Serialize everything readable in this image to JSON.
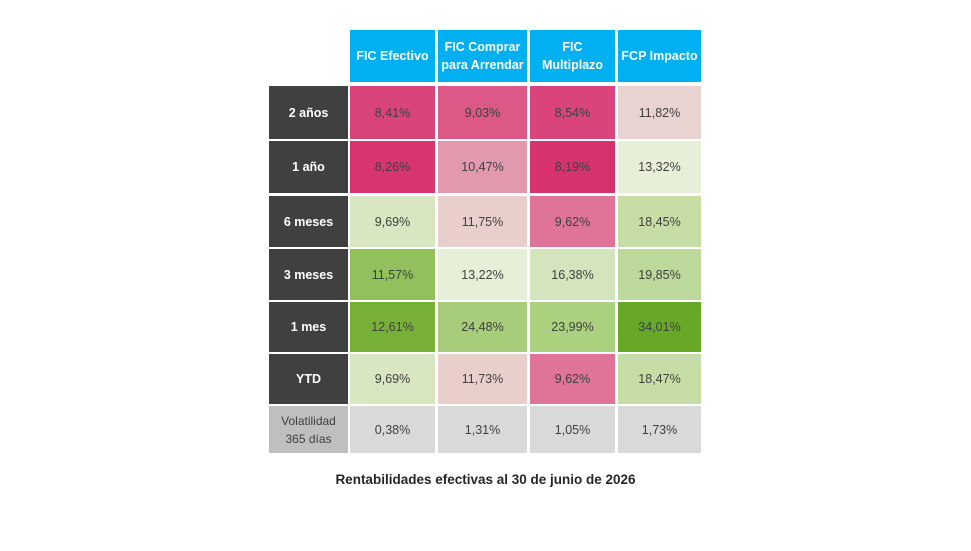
{
  "table": {
    "columns": [
      "FIC Efectivo",
      "FIC Comprar\npara Arrendar",
      "FIC\nMultiplazo",
      "FCP Impacto"
    ],
    "rows": [
      {
        "label": "2 años",
        "values": [
          "8,41%",
          "9,03%",
          "8,54%",
          "11,82%"
        ],
        "colors": [
          "#d8437a",
          "#dc5987",
          "#d8447b",
          "#e9d3d1"
        ]
      },
      {
        "label": "1 año",
        "values": [
          "8,26%",
          "10,47%",
          "8,19%",
          "13,32%"
        ],
        "colors": [
          "#d73570",
          "#e298ad",
          "#d6336e",
          "#e7efd8"
        ]
      },
      {
        "label": "6 meses",
        "values": [
          "9,69%",
          "11,75%",
          "9,62%",
          "18,45%"
        ],
        "colors": [
          "#d8e6c1",
          "#e8cfcc",
          "#df7498",
          "#c6dea6"
        ]
      },
      {
        "label": "3 meses",
        "values": [
          "11,57%",
          "13,22%",
          "16,38%",
          "19,85%"
        ],
        "colors": [
          "#92c05c",
          "#e6efd8",
          "#d4e5bd",
          "#bcd99b"
        ]
      },
      {
        "label": "1 mes",
        "values": [
          "12,61%",
          "24,48%",
          "23,99%",
          "34,01%"
        ],
        "colors": [
          "#78b037",
          "#a8cd7a",
          "#abd17e",
          "#68a827"
        ]
      },
      {
        "label": "YTD",
        "values": [
          "9,69%",
          "11,73%",
          "9,62%",
          "18,47%"
        ],
        "colors": [
          "#d9e6c2",
          "#e8cfcc",
          "#df7498",
          "#c6dea6"
        ]
      },
      {
        "label": "Volatilidad\n365 días",
        "values": [
          "0,38%",
          "1,31%",
          "1,05%",
          "1,73%"
        ],
        "colors": [
          "#d9d9d9",
          "#d9d9d9",
          "#d9d9d9",
          "#d9d9d9"
        ]
      }
    ]
  },
  "caption": "Rentabilidades efectivas al 30 de junio de 2026"
}
